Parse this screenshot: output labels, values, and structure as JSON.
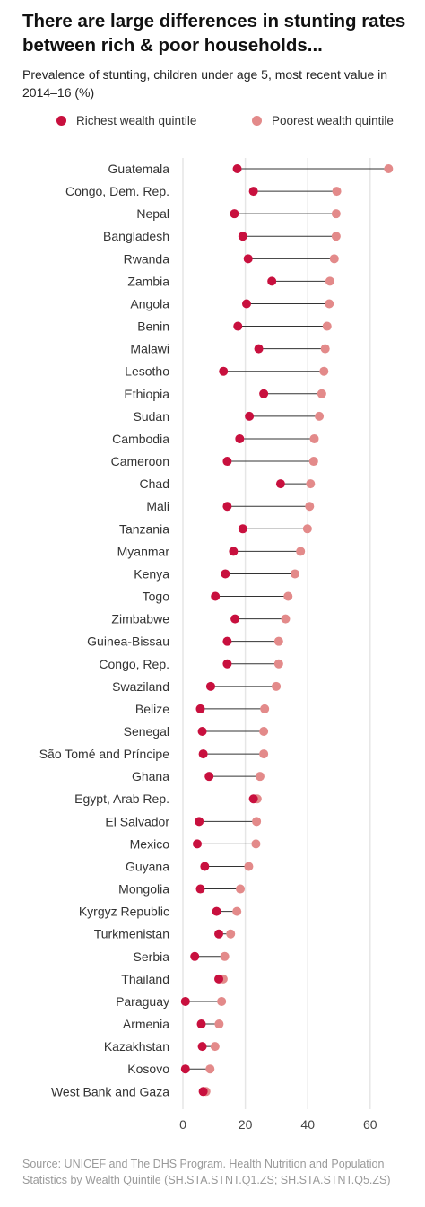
{
  "title": "There are large differences in stunting rates between rich & poor households...",
  "subtitle": "Prevalence of stunting, children under age 5, most recent value in 2014–16 (%)",
  "source": "Source: UNICEF and The DHS Program. Health Nutrition and Population Statistics by Wealth Quintile (SH.STA.STNT.Q1.ZS; SH.STA.STNT.Q5.ZS)",
  "colors": {
    "richest": "#c8103e",
    "poorest": "#e38a8a",
    "connector": "#333333",
    "grid": "#e6e6e6"
  },
  "chart_data": {
    "type": "dot-plot",
    "categories": [
      "Guatemala",
      "Congo, Dem. Rep.",
      "Nepal",
      "Bangladesh",
      "Rwanda",
      "Zambia",
      "Angola",
      "Benin",
      "Malawi",
      "Lesotho",
      "Ethiopia",
      "Sudan",
      "Cambodia",
      "Cameroon",
      "Chad",
      "Mali",
      "Tanzania",
      "Myanmar",
      "Kenya",
      "Togo",
      "Zimbabwe",
      "Guinea-Bissau",
      "Congo, Rep.",
      "Swaziland",
      "Belize",
      "Senegal",
      "São Tomé and Príncipe",
      "Ghana",
      "Egypt, Arab Rep.",
      "El Salvador",
      "Mexico",
      "Guyana",
      "Mongolia",
      "Kyrgyz Republic",
      "Turkmenistan",
      "Serbia",
      "Thailand",
      "Paraguay",
      "Armenia",
      "Kazakhstan",
      "Kosovo",
      "West Bank and Gaza"
    ],
    "series": [
      {
        "name": "Richest wealth quintile",
        "values": [
          17.4,
          22.6,
          16.5,
          19.2,
          20.9,
          28.5,
          20.4,
          17.6,
          24.3,
          13.0,
          25.9,
          21.3,
          18.2,
          14.2,
          31.3,
          14.2,
          19.2,
          16.2,
          13.6,
          10.4,
          16.7,
          14.2,
          14.2,
          8.9,
          5.6,
          6.2,
          6.5,
          8.4,
          22.6,
          5.2,
          4.6,
          7.0,
          5.6,
          10.8,
          11.5,
          3.8,
          11.5,
          0.8,
          5.9,
          6.2,
          0.8,
          6.5
        ]
      },
      {
        "name": "Poorest wealth quintile",
        "values": [
          65.9,
          49.3,
          49.1,
          49.1,
          48.5,
          47.1,
          46.9,
          46.2,
          45.6,
          45.2,
          44.5,
          43.7,
          42.1,
          41.9,
          40.9,
          40.6,
          39.9,
          37.7,
          35.9,
          33.7,
          32.9,
          30.7,
          30.7,
          29.9,
          26.2,
          25.9,
          25.9,
          24.7,
          23.8,
          23.6,
          23.4,
          21.1,
          18.4,
          17.3,
          15.3,
          13.4,
          12.9,
          12.4,
          11.6,
          10.3,
          8.7,
          7.4
        ]
      }
    ],
    "x_ticks": [
      "0",
      "20",
      "40",
      "60"
    ],
    "xlim": [
      0,
      70
    ],
    "grid": "vertical",
    "legend": "top"
  }
}
